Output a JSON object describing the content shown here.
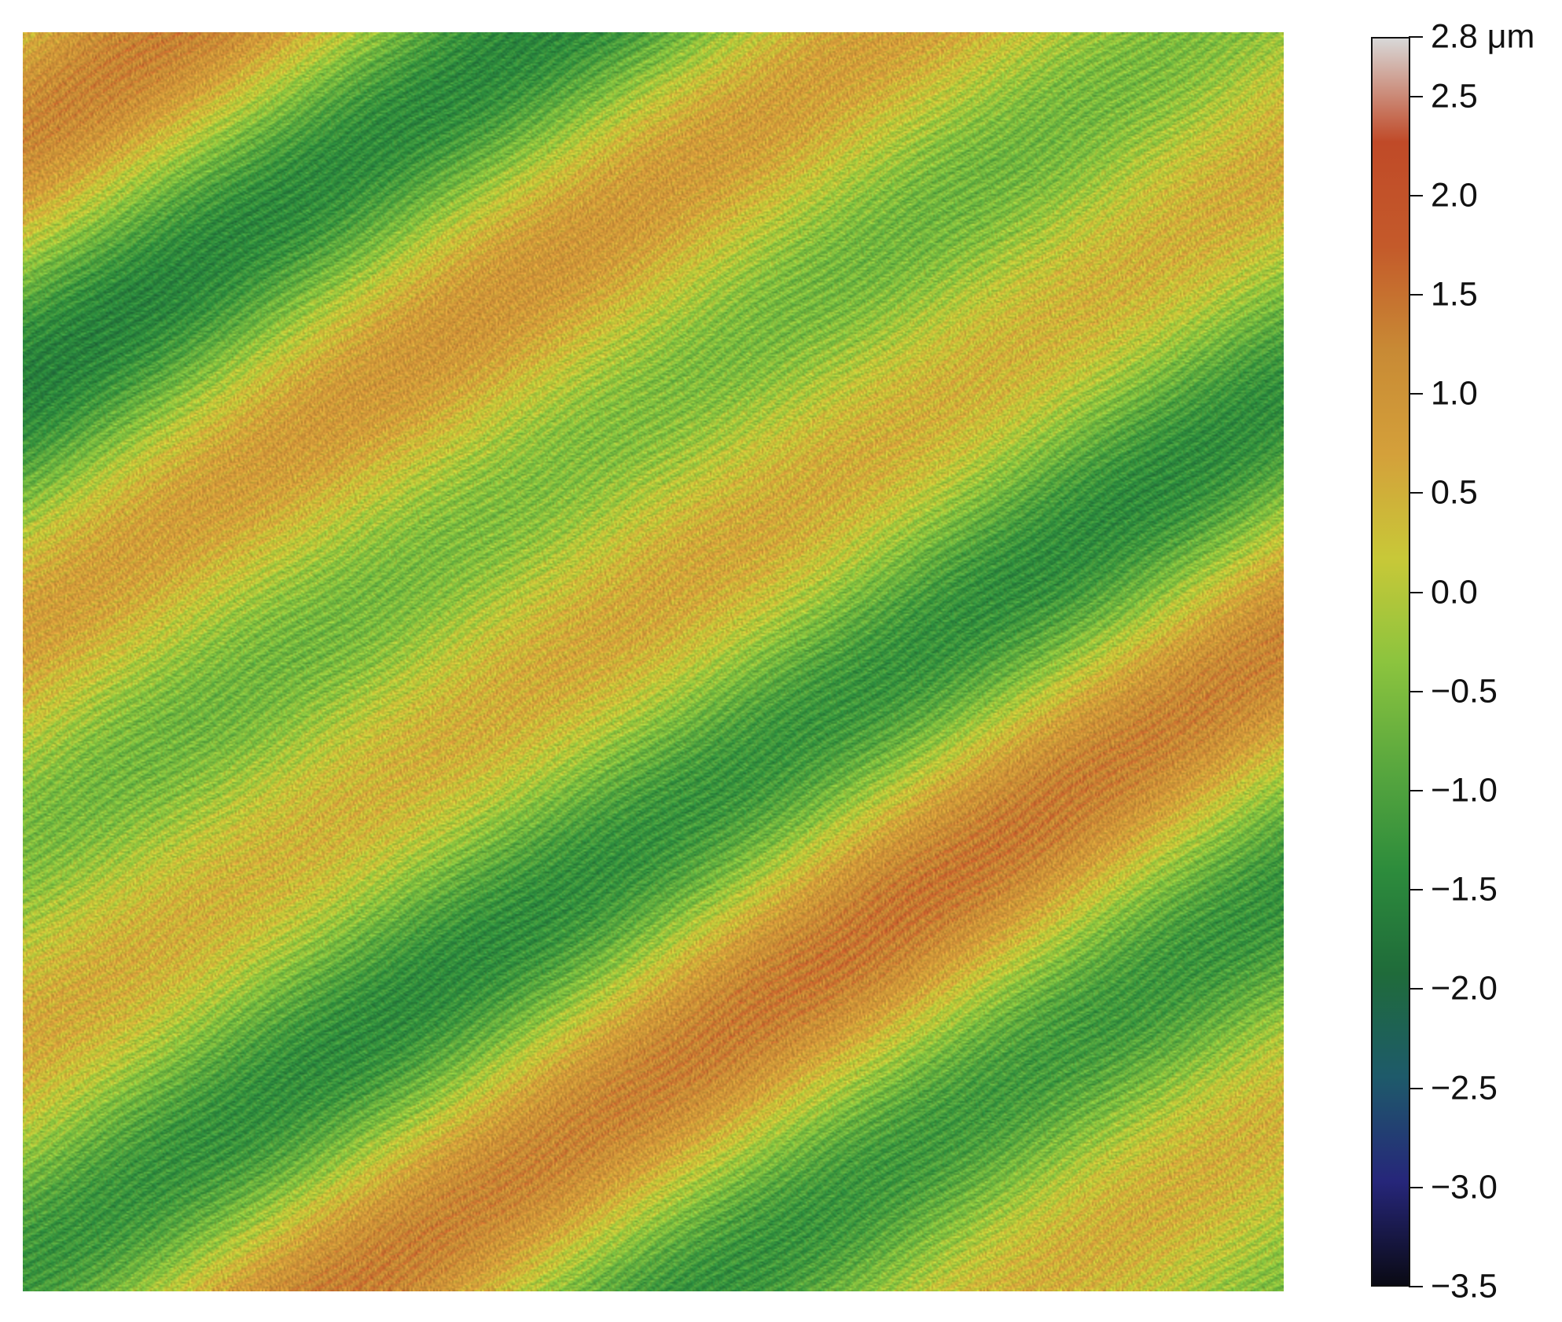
{
  "figure": {
    "colorbar": {
      "unit": "μm",
      "max": 2.8,
      "min": -3.5,
      "ticks": [
        {
          "value": 2.8,
          "label": "2.8 μm"
        },
        {
          "value": 2.5,
          "label": "2.5"
        },
        {
          "value": 2.0,
          "label": "2.0"
        },
        {
          "value": 1.5,
          "label": "1.5"
        },
        {
          "value": 1.0,
          "label": "1.0"
        },
        {
          "value": 0.5,
          "label": "0.5"
        },
        {
          "value": 0.0,
          "label": "0.0"
        },
        {
          "value": -0.5,
          "label": "−0.5"
        },
        {
          "value": -1.0,
          "label": "−1.0"
        },
        {
          "value": -1.5,
          "label": "−1.5"
        },
        {
          "value": -2.0,
          "label": "−2.0"
        },
        {
          "value": -2.5,
          "label": "−2.5"
        },
        {
          "value": -3.0,
          "label": "−3.0"
        },
        {
          "value": -3.5,
          "label": "−3.5"
        }
      ],
      "colors": [
        "#0a0a14",
        "#26267a",
        "#1e5a6a",
        "#1f6b3a",
        "#2d8c3c",
        "#5aa83e",
        "#8cc43e",
        "#c8c838",
        "#d4a03a",
        "#c88a35",
        "#c45a2a",
        "#c04a28",
        "#d8d8d8"
      ]
    },
    "surface": {
      "style": "height map of a textured surface with diagonal grooves",
      "ridge_direction": "diagonal, lower-left to upper-right"
    }
  }
}
